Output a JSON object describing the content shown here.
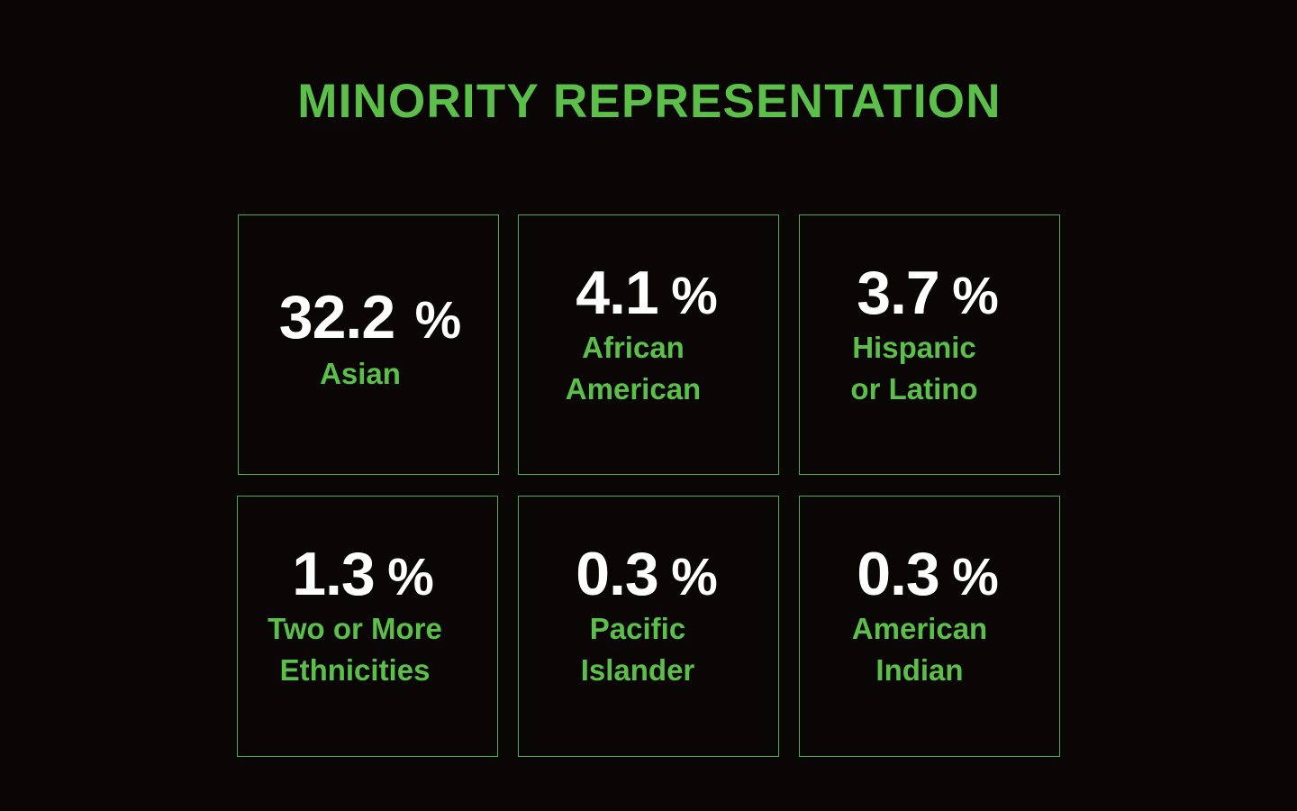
{
  "slide": {
    "title": "MINORITY REPRESENTATION",
    "accent_color": "#5bbf4a",
    "background_color": "#0a0605",
    "value_color": "#ffffff"
  },
  "stats": [
    {
      "value": "32.2",
      "unit": "%",
      "label_lines": [
        "Asian"
      ]
    },
    {
      "value": "4.1",
      "unit": "%",
      "label_lines": [
        "African",
        "American"
      ]
    },
    {
      "value": "3.7",
      "unit": "%",
      "label_lines": [
        "Hispanic",
        "or Latino"
      ]
    },
    {
      "value": "1.3",
      "unit": "%",
      "label_lines": [
        "Two or More",
        "Ethnicities"
      ]
    },
    {
      "value": "0.3",
      "unit": "%",
      "label_lines": [
        "Pacific",
        "Islander"
      ]
    },
    {
      "value": "0.3",
      "unit": "%",
      "label_lines": [
        "American",
        "Indian"
      ]
    }
  ]
}
